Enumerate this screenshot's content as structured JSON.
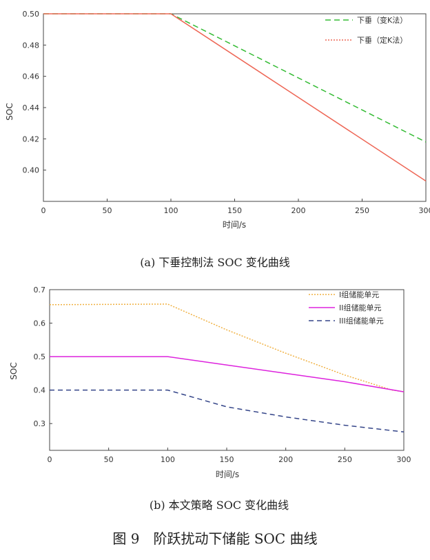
{
  "chart_data": [
    {
      "type": "line",
      "xlabel": "时间/s",
      "ylabel": "SOC",
      "xlim": [
        0,
        300
      ],
      "ylim": [
        0.38,
        0.5
      ],
      "xticks": [
        0,
        50,
        100,
        150,
        200,
        250,
        300
      ],
      "yticks": [
        0.4,
        0.42,
        0.44,
        0.46,
        0.48,
        0.5
      ],
      "ytick_labels": [
        "0.40",
        "0.42",
        "0.44",
        "0.46",
        "0.48",
        "0.50"
      ],
      "legend_position": "top-right",
      "grid": false,
      "series": [
        {
          "name": "下垂（变K法）",
          "color": "#33bb33",
          "dash": "8,5",
          "x": [
            0,
            100,
            300
          ],
          "y": [
            0.5,
            0.5,
            0.418
          ]
        },
        {
          "name": "下垂（定K法）",
          "color": "#ee6655",
          "dash": "",
          "x": [
            0,
            100,
            300
          ],
          "y": [
            0.5,
            0.5,
            0.393
          ]
        }
      ],
      "caption": "(a) 下垂控制法 SOC 变化曲线"
    },
    {
      "type": "line",
      "xlabel": "时间/s",
      "ylabel": "SOC",
      "xlim": [
        0,
        300
      ],
      "ylim": [
        0.22,
        0.7
      ],
      "xticks": [
        0,
        50,
        100,
        150,
        200,
        250,
        300
      ],
      "yticks": [
        0.3,
        0.4,
        0.5,
        0.6,
        0.7
      ],
      "ytick_labels": [
        "0.3",
        "0.4",
        "0.5",
        "0.6",
        "0.7"
      ],
      "legend_position": "top-right",
      "grid": false,
      "series": [
        {
          "name": "I组储能单元",
          "color": "#f0b040",
          "dash": "2,2",
          "x": [
            0,
            100,
            150,
            200,
            250,
            290,
            300
          ],
          "y": [
            0.655,
            0.657,
            0.58,
            0.51,
            0.445,
            0.4,
            0.395
          ]
        },
        {
          "name": "II组储能单元",
          "color": "#dd22dd",
          "dash": "",
          "x": [
            0,
            100,
            150,
            200,
            250,
            300
          ],
          "y": [
            0.5,
            0.5,
            0.475,
            0.45,
            0.425,
            0.395
          ]
        },
        {
          "name": "III组储能单元",
          "color": "#334488",
          "dash": "7,5",
          "x": [
            0,
            100,
            150,
            200,
            250,
            300
          ],
          "y": [
            0.4,
            0.4,
            0.35,
            0.32,
            0.295,
            0.275
          ]
        }
      ],
      "caption": "(b) 本文策略 SOC 变化曲线"
    }
  ],
  "figure_caption": "图 9　阶跃扰动下储能 SOC 曲线"
}
